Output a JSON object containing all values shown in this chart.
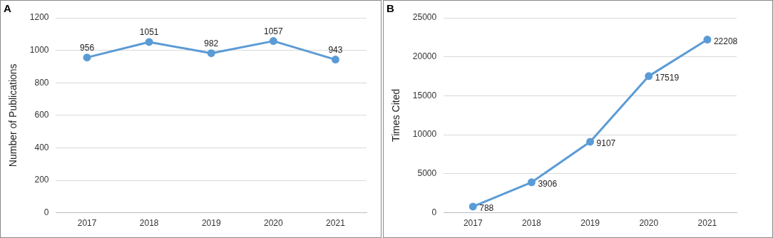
{
  "chart_data": [
    {
      "type": "line",
      "title": "A",
      "ylabel": "Number of Publications",
      "categories": [
        "2017",
        "2018",
        "2019",
        "2020",
        "2021"
      ],
      "series": [
        {
          "color": "#5b9bd5",
          "values": [
            956,
            1051,
            982,
            1057,
            943
          ]
        }
      ],
      "ylim": [
        0,
        1200
      ],
      "yticks": [
        0,
        200,
        400,
        600,
        800,
        1000,
        1200
      ],
      "grid": "y",
      "marker": "circle",
      "data_labels": true,
      "legend": false
    },
    {
      "type": "line",
      "title": "B",
      "ylabel": "Times Cited",
      "categories": [
        "2017",
        "2018",
        "2019",
        "2020",
        "2021"
      ],
      "series": [
        {
          "color": "#5b9bd5",
          "values": [
            788,
            3906,
            9107,
            17519,
            22208
          ]
        }
      ],
      "ylim": [
        0,
        25000
      ],
      "yticks": [
        0,
        5000,
        10000,
        15000,
        20000,
        25000
      ],
      "grid": "y",
      "marker": "circle",
      "data_labels": true,
      "legend": false
    }
  ]
}
